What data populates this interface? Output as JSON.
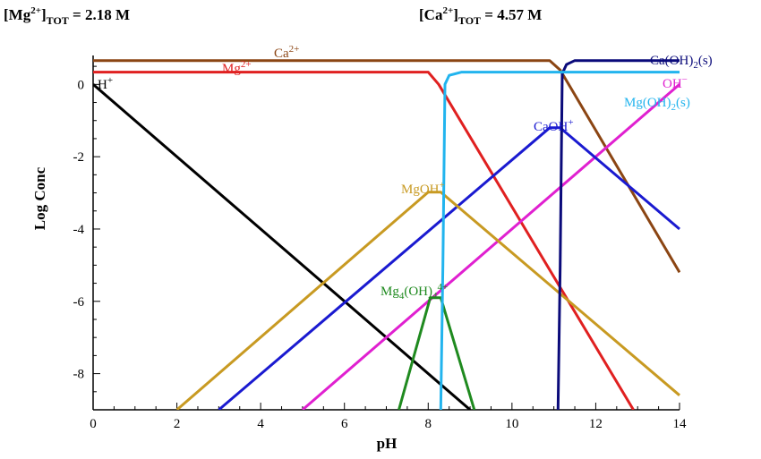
{
  "header": {
    "mg_total": {
      "prefix": "[Mg",
      "sup": "2+",
      "mid": "]",
      "sub": "TOT",
      "suffix": " = 2.18 M"
    },
    "ca_total": {
      "prefix": "[Ca",
      "sup": "2+",
      "mid": "]",
      "sub": "TOT",
      "suffix": " = 4.57 M"
    }
  },
  "chart_data": {
    "type": "line",
    "title": "",
    "xlabel": "pH",
    "ylabel": "Log Conc",
    "xlim": [
      0,
      14
    ],
    "ylim": [
      -9,
      0.8
    ],
    "xticks": [
      0,
      2,
      4,
      6,
      8,
      10,
      12,
      14
    ],
    "yticks": [
      0,
      -2,
      -4,
      -6,
      -8
    ],
    "ytick_labels": [
      "0",
      "-2",
      "-4",
      "-6",
      "-8"
    ],
    "grid": false,
    "legend": "none",
    "series": [
      {
        "name": "Ca2+",
        "color": "#8B4513",
        "label": {
          "base": "Ca",
          "sup": "2+"
        },
        "x": [
          0,
          10.9,
          11.15,
          14
        ],
        "y": [
          0.66,
          0.66,
          0.4,
          -5.2
        ]
      },
      {
        "name": "Mg2+",
        "color": "#e02020",
        "label": {
          "base": "Mg",
          "sup": "2+"
        },
        "x": [
          0,
          8.0,
          8.25,
          12.9
        ],
        "y": [
          0.34,
          0.34,
          0.0,
          -9.0
        ]
      },
      {
        "name": "H+",
        "color": "#000000",
        "label": {
          "base": "H",
          "sup": "+"
        },
        "x": [
          0,
          9.0
        ],
        "y": [
          0.0,
          -9.0
        ]
      },
      {
        "name": "OH-",
        "color": "#e020d0",
        "label": {
          "base": "OH",
          "sup": "−"
        },
        "x": [
          5.0,
          14.0
        ],
        "y": [
          -9.0,
          0.0
        ]
      },
      {
        "name": "CaOH+",
        "color": "#1a1ad0",
        "label": {
          "base": "CaOH",
          "sup": "+"
        },
        "x": [
          3.0,
          10.9,
          11.15,
          14
        ],
        "y": [
          -9.0,
          -1.2,
          -1.2,
          -4.0
        ]
      },
      {
        "name": "MgOH+",
        "color": "#c89a22",
        "label": {
          "base": "MgOH",
          "sup": "+"
        },
        "x": [
          2.0,
          8.0,
          8.3,
          14
        ],
        "y": [
          -9.0,
          -2.98,
          -2.98,
          -8.6
        ]
      },
      {
        "name": "Mg4(OH)4 4+",
        "color": "#1f8a1f",
        "label": {
          "base": "Mg",
          "sub1": "4",
          "mid": "(OH)",
          "sub2": "4",
          "sup": "4+"
        },
        "x": [
          7.3,
          8.05,
          8.3,
          9.1
        ],
        "y": [
          -9.0,
          -5.9,
          -5.9,
          -9.0
        ]
      },
      {
        "name": "Ca(OH)2(s)",
        "color": "#0a0a7a",
        "label": {
          "base": "Ca(OH)",
          "sub": "2",
          "tail": "(s)"
        },
        "x": [
          11.1,
          11.15,
          11.2,
          11.3,
          11.5,
          14
        ],
        "y": [
          -9.0,
          -5.0,
          0.3,
          0.55,
          0.66,
          0.66
        ]
      },
      {
        "name": "Mg(OH)2(s)",
        "color": "#22b4ee",
        "label": {
          "base": "Mg(OH)",
          "sub": "2",
          "tail": "(s)"
        },
        "x": [
          8.3,
          8.35,
          8.4,
          8.5,
          8.8,
          14
        ],
        "y": [
          -9.0,
          -5.0,
          0.0,
          0.25,
          0.34,
          0.34
        ]
      }
    ]
  }
}
